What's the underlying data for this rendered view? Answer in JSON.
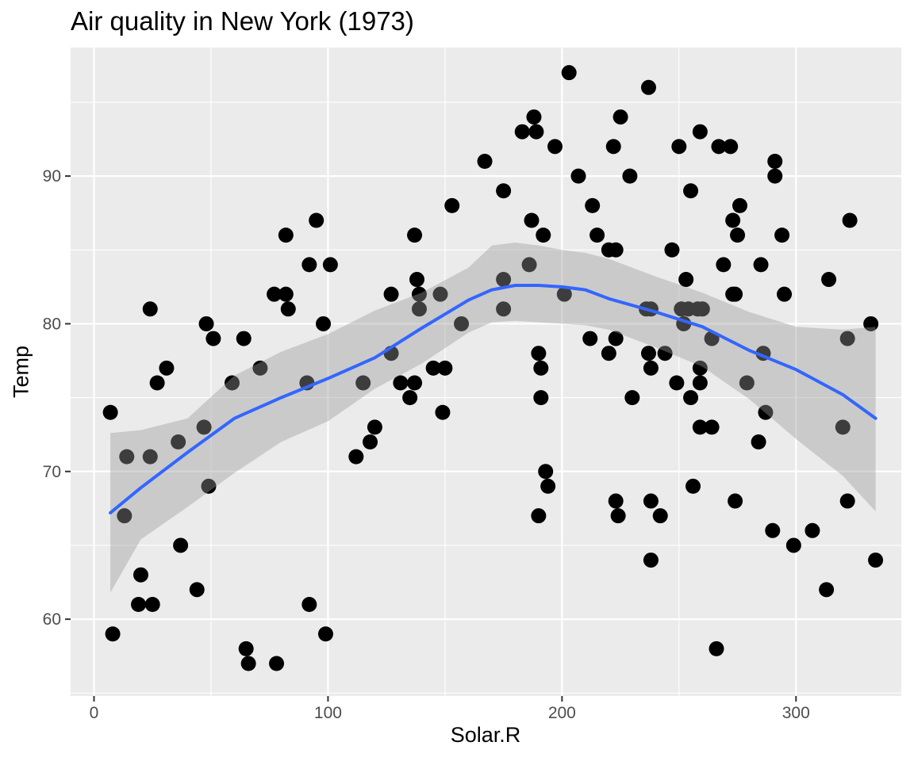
{
  "chart_data": {
    "type": "scatter",
    "title": "Air quality in New York (1973)",
    "xlabel": "Solar.R",
    "ylabel": "Temp",
    "xlim": [
      -10,
      345
    ],
    "ylim": [
      54.8,
      98.7
    ],
    "xticks": [
      0,
      100,
      200,
      300
    ],
    "yticks": [
      60,
      70,
      80,
      90
    ],
    "grid": true,
    "legend": "none",
    "colors": {
      "panel": "#EBEBEB",
      "grid": "#FFFFFF",
      "points": "#000000",
      "smooth_line": "#3366FF",
      "confidence_band": "#999999",
      "tick_label": "#4D4D4D"
    },
    "points": [
      [
        7,
        74
      ],
      [
        8,
        59
      ],
      [
        13,
        67
      ],
      [
        14,
        71
      ],
      [
        19,
        61
      ],
      [
        20,
        63
      ],
      [
        24,
        81
      ],
      [
        24,
        71
      ],
      [
        25,
        61
      ],
      [
        27,
        76
      ],
      [
        31,
        77
      ],
      [
        36,
        72
      ],
      [
        37,
        65
      ],
      [
        44,
        62
      ],
      [
        47,
        73
      ],
      [
        48,
        80
      ],
      [
        49,
        69
      ],
      [
        51,
        79
      ],
      [
        59,
        76
      ],
      [
        64,
        79
      ],
      [
        65,
        58
      ],
      [
        66,
        57
      ],
      [
        71,
        77
      ],
      [
        77,
        82
      ],
      [
        78,
        57
      ],
      [
        82,
        82
      ],
      [
        82,
        86
      ],
      [
        83,
        81
      ],
      [
        91,
        76
      ],
      [
        92,
        61
      ],
      [
        92,
        84
      ],
      [
        95,
        87
      ],
      [
        98,
        80
      ],
      [
        99,
        59
      ],
      [
        101,
        84
      ],
      [
        112,
        71
      ],
      [
        115,
        76
      ],
      [
        118,
        72
      ],
      [
        120,
        73
      ],
      [
        127,
        82
      ],
      [
        127,
        78
      ],
      [
        131,
        76
      ],
      [
        135,
        75
      ],
      [
        137,
        76
      ],
      [
        137,
        86
      ],
      [
        138,
        83
      ],
      [
        139,
        82
      ],
      [
        139,
        81
      ],
      [
        145,
        77
      ],
      [
        148,
        82
      ],
      [
        149,
        74
      ],
      [
        150,
        77
      ],
      [
        153,
        88
      ],
      [
        157,
        80
      ],
      [
        167,
        91
      ],
      [
        175,
        83
      ],
      [
        175,
        81
      ],
      [
        175,
        89
      ],
      [
        183,
        93
      ],
      [
        186,
        84
      ],
      [
        187,
        87
      ],
      [
        188,
        94
      ],
      [
        189,
        93
      ],
      [
        190,
        78
      ],
      [
        190,
        67
      ],
      [
        191,
        77
      ],
      [
        191,
        75
      ],
      [
        192,
        86
      ],
      [
        193,
        70
      ],
      [
        194,
        69
      ],
      [
        197,
        92
      ],
      [
        201,
        82
      ],
      [
        203,
        97
      ],
      [
        207,
        90
      ],
      [
        212,
        79
      ],
      [
        213,
        88
      ],
      [
        215,
        86
      ],
      [
        220,
        85
      ],
      [
        220,
        78
      ],
      [
        222,
        92
      ],
      [
        223,
        85
      ],
      [
        223,
        68
      ],
      [
        223,
        79
      ],
      [
        224,
        67
      ],
      [
        225,
        94
      ],
      [
        229,
        90
      ],
      [
        230,
        75
      ],
      [
        236,
        81
      ],
      [
        237,
        78
      ],
      [
        237,
        96
      ],
      [
        238,
        64
      ],
      [
        238,
        68
      ],
      [
        238,
        81
      ],
      [
        238,
        77
      ],
      [
        242,
        67
      ],
      [
        244,
        78
      ],
      [
        247,
        85
      ],
      [
        249,
        76
      ],
      [
        250,
        92
      ],
      [
        251,
        81
      ],
      [
        252,
        80
      ],
      [
        253,
        83
      ],
      [
        254,
        81
      ],
      [
        255,
        89
      ],
      [
        255,
        75
      ],
      [
        256,
        69
      ],
      [
        258,
        81
      ],
      [
        259,
        93
      ],
      [
        259,
        77
      ],
      [
        259,
        73
      ],
      [
        259,
        76
      ],
      [
        260,
        81
      ],
      [
        264,
        79
      ],
      [
        264,
        73
      ],
      [
        266,
        58
      ],
      [
        267,
        92
      ],
      [
        269,
        84
      ],
      [
        272,
        92
      ],
      [
        273,
        87
      ],
      [
        273,
        82
      ],
      [
        274,
        68
      ],
      [
        274,
        82
      ],
      [
        275,
        86
      ],
      [
        276,
        88
      ],
      [
        279,
        76
      ],
      [
        284,
        72
      ],
      [
        285,
        84
      ],
      [
        286,
        78
      ],
      [
        287,
        74
      ],
      [
        290,
        66
      ],
      [
        291,
        91
      ],
      [
        291,
        90
      ],
      [
        294,
        86
      ],
      [
        295,
        82
      ],
      [
        299,
        65
      ],
      [
        307,
        66
      ],
      [
        313,
        62
      ],
      [
        314,
        83
      ],
      [
        320,
        73
      ],
      [
        322,
        68
      ],
      [
        322,
        79
      ],
      [
        323,
        87
      ],
      [
        332,
        80
      ],
      [
        334,
        64
      ]
    ],
    "smooth": {
      "method": "loess",
      "x": [
        7,
        20,
        40,
        60,
        80,
        100,
        120,
        140,
        160,
        170,
        180,
        190,
        200,
        210,
        220,
        240,
        260,
        280,
        300,
        320,
        334
      ],
      "y": [
        67.2,
        68.9,
        71.3,
        73.6,
        75.0,
        76.3,
        77.7,
        79.7,
        81.6,
        82.3,
        82.6,
        82.6,
        82.5,
        82.3,
        81.7,
        80.8,
        79.8,
        78.2,
        76.9,
        75.2,
        73.6
      ],
      "lower": [
        61.8,
        65.4,
        67.6,
        69.9,
        72.0,
        73.4,
        75.6,
        77.3,
        79.4,
        80.1,
        80.2,
        80.1,
        80.0,
        79.9,
        79.6,
        78.4,
        77.1,
        74.9,
        72.2,
        69.7,
        67.3
      ],
      "upper": [
        72.6,
        72.8,
        73.6,
        76.5,
        78.1,
        79.3,
        80.9,
        82.1,
        83.8,
        85.3,
        85.5,
        85.3,
        85.0,
        84.8,
        84.4,
        83.2,
        82.1,
        80.8,
        79.8,
        79.6,
        79.8
      ]
    }
  }
}
